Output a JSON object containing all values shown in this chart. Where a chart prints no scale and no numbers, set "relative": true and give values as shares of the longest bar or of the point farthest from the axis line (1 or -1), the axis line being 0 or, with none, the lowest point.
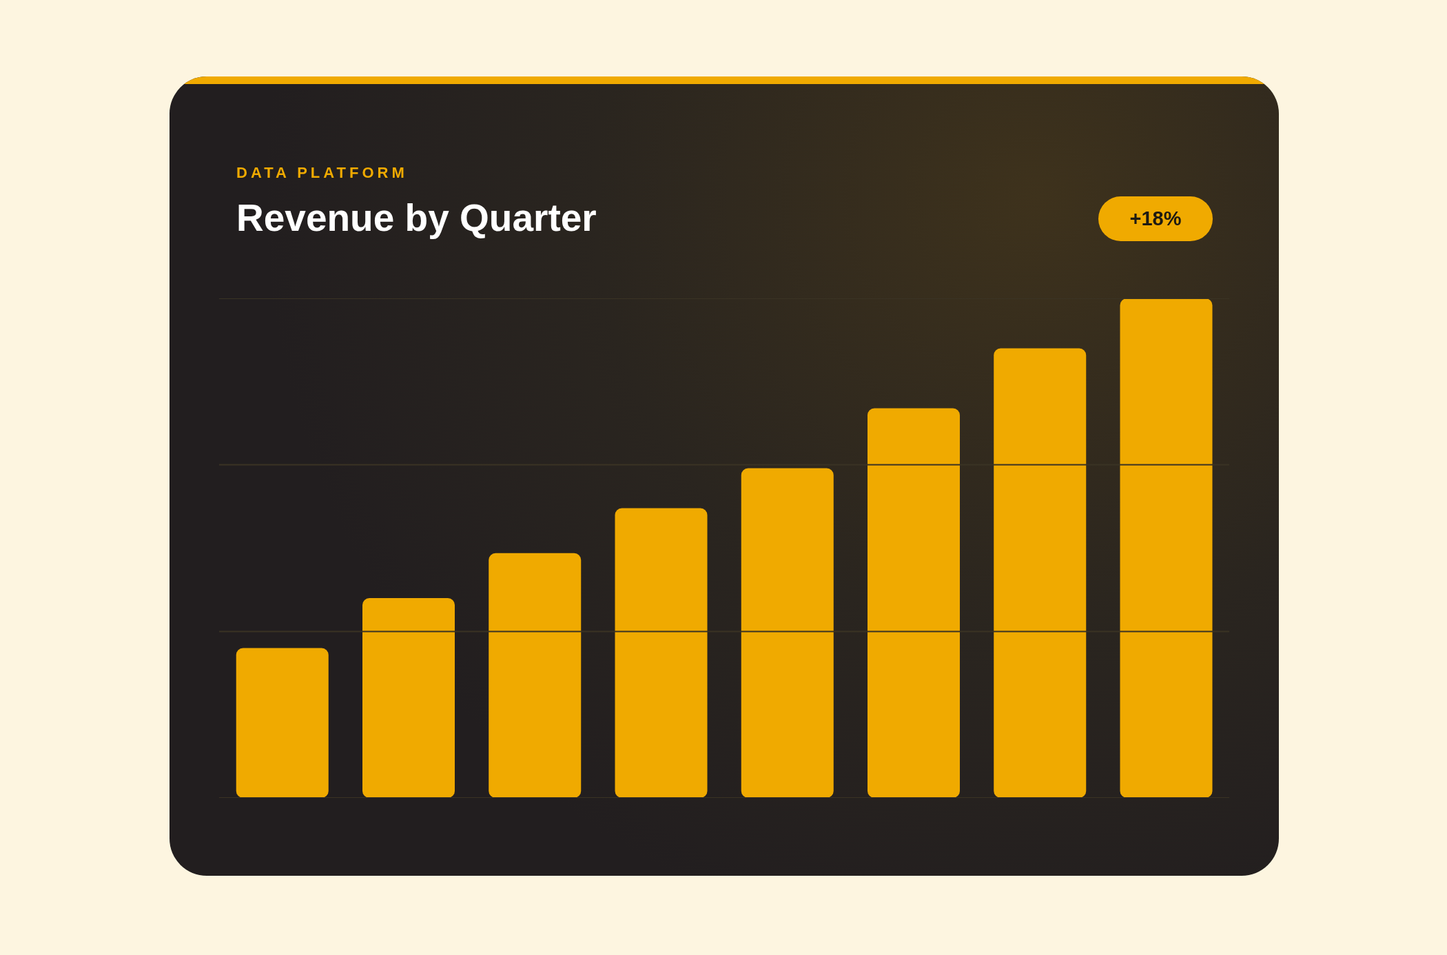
{
  "chart_data": {
    "type": "bar",
    "title": "Revenue by Quarter",
    "subtitle": "DATA PLATFORM",
    "annotations": [
      "+18%"
    ],
    "categories": [
      null,
      null,
      null,
      null,
      null,
      null,
      null,
      null
    ],
    "values": [
      0.3,
      0.4,
      0.49,
      0.58,
      0.66,
      0.78,
      0.9,
      1
    ],
    "color": "#f0aa00",
    "relative": true,
    "ref_lines": [
      {
        "axis": "y",
        "value": 0,
        "color": "#3a3324"
      },
      {
        "axis": "y",
        "value": 0.333,
        "color": "#3a3324"
      },
      {
        "axis": "y",
        "value": 0.667,
        "color": "#3a3324"
      },
      {
        "axis": "y",
        "value": 1,
        "color": "#3a3324"
      }
    ]
  }
}
